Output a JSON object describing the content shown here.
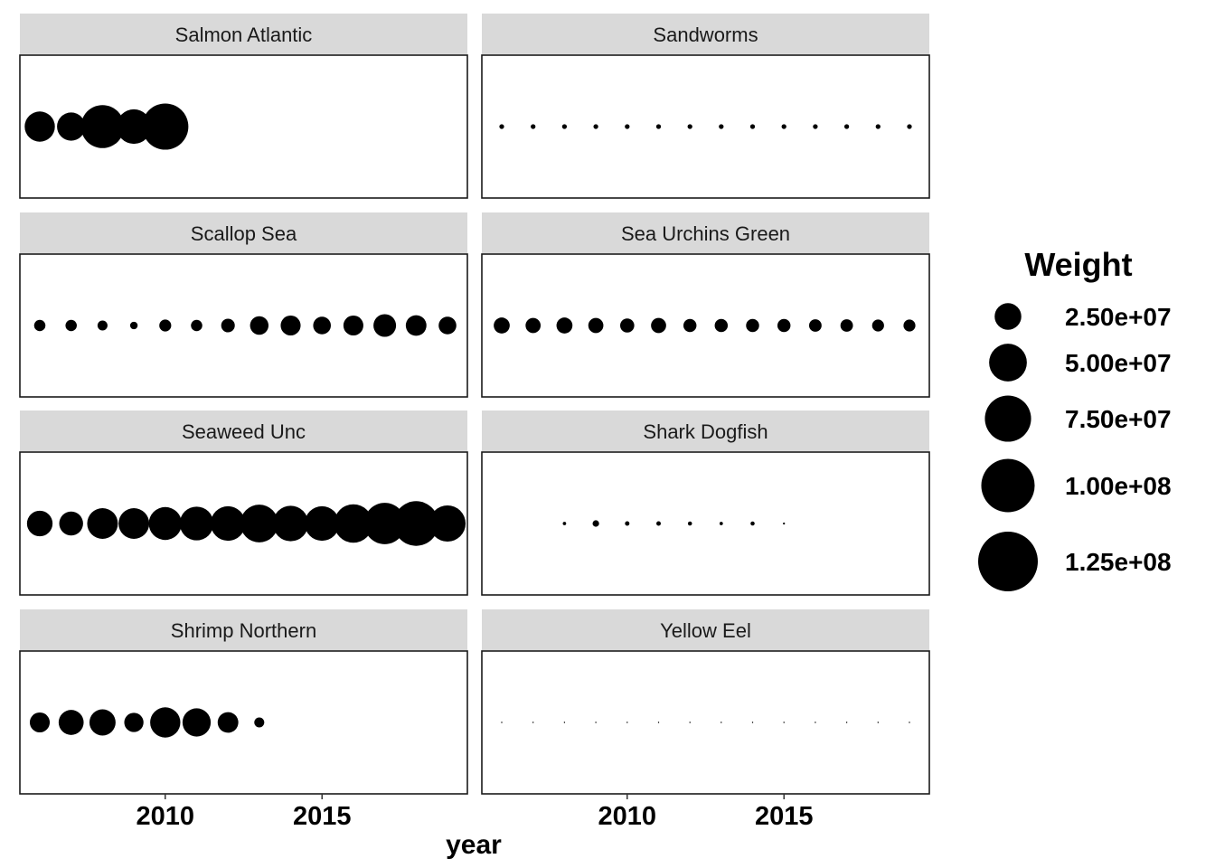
{
  "chart_data": {
    "type": "scatter",
    "xlabel": "year",
    "ylabel": "",
    "xlim": [
      2005.4,
      2019.6
    ],
    "xticks": [
      2010,
      2015
    ],
    "size_legend": {
      "title": "Weight",
      "breaks": [
        25000000,
        50000000,
        75000000,
        100000000,
        125000000
      ],
      "labels": [
        "2.50e+07",
        "5.00e+07",
        "7.50e+07",
        "1.00e+08",
        "1.25e+08"
      ]
    },
    "panels": [
      {
        "name": "Salmon Atlantic",
        "x": [
          2006,
          2007,
          2008,
          2009,
          2010
        ],
        "values": [
          32000000,
          28000000,
          65000000,
          42000000,
          75000000
        ]
      },
      {
        "name": "Sandworms",
        "x": [
          2006,
          2007,
          2008,
          2009,
          2010,
          2011,
          2012,
          2013,
          2014,
          2015,
          2016,
          2017,
          2018,
          2019
        ],
        "values": [
          800000,
          800000,
          800000,
          800000,
          800000,
          800000,
          800000,
          800000,
          800000,
          800000,
          800000,
          800000,
          800000,
          800000
        ]
      },
      {
        "name": "Scallop Sea",
        "x": [
          2006,
          2007,
          2008,
          2009,
          2010,
          2011,
          2012,
          2013,
          2014,
          2015,
          2016,
          2017,
          2018,
          2019
        ],
        "values": [
          4500000,
          4500000,
          3500000,
          2000000,
          5000000,
          4500000,
          6500000,
          12000000,
          14000000,
          11000000,
          14000000,
          18000000,
          15000000,
          11000000
        ]
      },
      {
        "name": "Sea Urchins Green",
        "x": [
          2006,
          2007,
          2008,
          2009,
          2010,
          2011,
          2012,
          2013,
          2014,
          2015,
          2016,
          2017,
          2018,
          2019
        ],
        "values": [
          9000000,
          8000000,
          9000000,
          8000000,
          7000000,
          8000000,
          6000000,
          6000000,
          6000000,
          6000000,
          5500000,
          5500000,
          5000000,
          5000000
        ]
      },
      {
        "name": "Seaweed Unc",
        "x": [
          2006,
          2007,
          2008,
          2009,
          2010,
          2011,
          2012,
          2013,
          2014,
          2015,
          2016,
          2017,
          2018,
          2019
        ],
        "values": [
          23000000,
          20000000,
          33000000,
          33000000,
          38000000,
          40000000,
          42000000,
          50000000,
          44000000,
          42000000,
          52000000,
          60000000,
          70000000,
          46000000
        ]
      },
      {
        "name": "Shark Dogfish",
        "x": [
          2008,
          2009,
          2010,
          2011,
          2012,
          2013,
          2014,
          2015
        ],
        "values": [
          400000,
          1500000,
          700000,
          700000,
          600000,
          400000,
          600000,
          150000
        ]
      },
      {
        "name": "Shrimp Northern",
        "x": [
          2006,
          2007,
          2008,
          2009,
          2010,
          2011,
          2012,
          2013
        ],
        "values": [
          14000000,
          22000000,
          24000000,
          13000000,
          32000000,
          28000000,
          15000000,
          3500000
        ]
      },
      {
        "name": "Yellow Eel",
        "x": [
          2006,
          2007,
          2008,
          2009,
          2010,
          2011,
          2012,
          2013,
          2014,
          2015,
          2016,
          2017,
          2018,
          2019
        ],
        "values": [
          60000,
          60000,
          60000,
          60000,
          60000,
          60000,
          60000,
          60000,
          60000,
          60000,
          60000,
          60000,
          60000,
          60000
        ]
      }
    ]
  }
}
